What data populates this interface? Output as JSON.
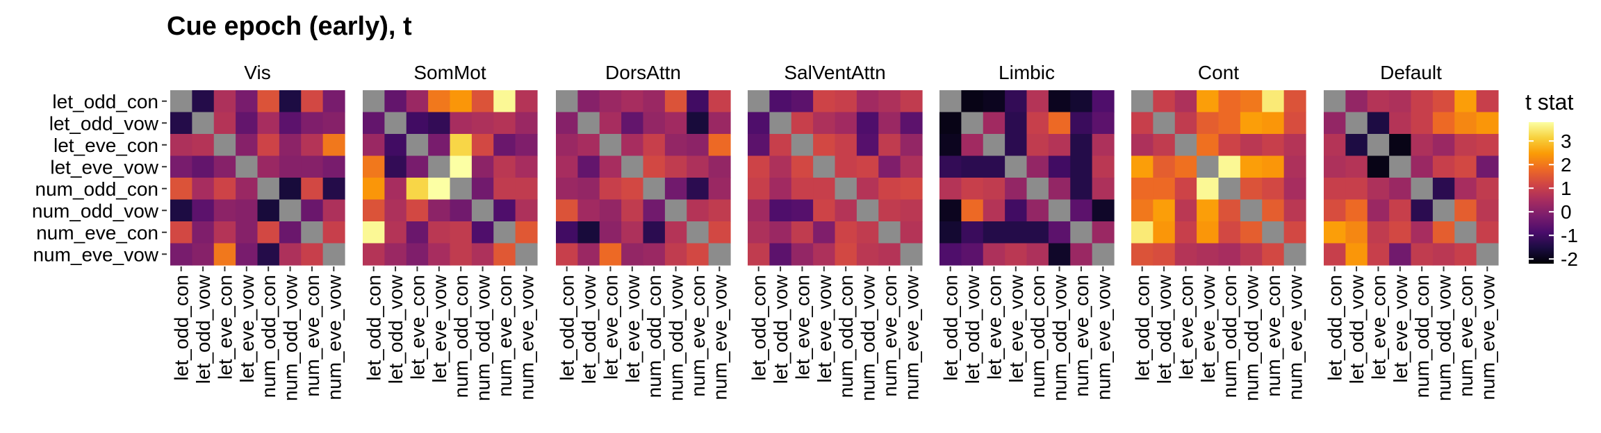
{
  "chart_data": {
    "type": "heatmap",
    "title": "Cue epoch (early), t",
    "xlabel": "",
    "ylabel": "",
    "row_labels": [
      "let_odd_con",
      "let_odd_vow",
      "let_eve_con",
      "let_eve_vow",
      "num_odd_con",
      "num_odd_vow",
      "num_eve_con",
      "num_eve_vow"
    ],
    "col_labels": [
      "let_odd_con",
      "let_odd_vow",
      "let_eve_con",
      "let_eve_vow",
      "num_odd_con",
      "num_odd_vow",
      "num_eve_con",
      "num_eve_vow"
    ],
    "diagonal": "NA",
    "na_color": "#8c8c8c",
    "color_scale": {
      "name": "inferno",
      "range": [
        -2.2,
        3.8
      ],
      "stops": [
        "#000004",
        "#1b0c41",
        "#4a0c6b",
        "#781c6d",
        "#a52c60",
        "#cf4446",
        "#ed6925",
        "#fb9b06",
        "#f7d13d",
        "#fcffa4"
      ]
    },
    "legend": {
      "title": "t stat",
      "ticks": [
        3,
        2,
        1,
        0,
        -1,
        -2
      ],
      "placement": "right"
    },
    "panels": [
      {
        "name": "Vis",
        "values": [
          [
            null,
            -1.4,
            0.6,
            -0.2,
            1.4,
            -1.5,
            1.2,
            -0.2
          ],
          [
            -1.4,
            null,
            0.7,
            -0.5,
            0.5,
            -0.6,
            -0.1,
            0.0
          ],
          [
            0.6,
            0.7,
            null,
            0.0,
            1.1,
            0.1,
            0.7,
            2.0
          ],
          [
            -0.2,
            -0.5,
            0.0,
            null,
            0.3,
            0.0,
            0.0,
            -0.2
          ],
          [
            1.4,
            0.5,
            1.1,
            0.3,
            null,
            -1.6,
            1.2,
            -1.4
          ],
          [
            -1.5,
            -0.6,
            0.1,
            0.0,
            -1.6,
            null,
            -0.4,
            0.6
          ],
          [
            1.2,
            -0.1,
            0.7,
            0.0,
            1.2,
            -0.4,
            null,
            1.0
          ],
          [
            -0.2,
            0.0,
            2.0,
            -0.2,
            -1.4,
            0.6,
            1.0,
            null
          ]
        ]
      },
      {
        "name": "SomMot",
        "values": [
          [
            null,
            -0.5,
            0.3,
            2.0,
            2.4,
            1.4,
            3.7,
            0.7
          ],
          [
            -0.5,
            null,
            -1.0,
            -1.2,
            0.5,
            0.6,
            0.7,
            0.3
          ],
          [
            0.3,
            -1.0,
            null,
            -0.2,
            3.2,
            1.2,
            -0.4,
            -0.1
          ],
          [
            2.0,
            -1.2,
            -0.2,
            null,
            3.8,
            0.1,
            0.8,
            0.5
          ],
          [
            2.4,
            0.5,
            3.2,
            3.8,
            null,
            -0.3,
            0.9,
            0.9
          ],
          [
            1.4,
            0.6,
            1.2,
            0.1,
            -0.3,
            null,
            -0.8,
            0.6
          ],
          [
            3.7,
            0.7,
            -0.4,
            0.8,
            0.9,
            -0.8,
            null,
            1.5
          ],
          [
            0.7,
            0.3,
            -0.1,
            0.5,
            0.9,
            0.6,
            1.5,
            null
          ]
        ]
      },
      {
        "name": "DorsAttn",
        "values": [
          [
            null,
            0.0,
            0.3,
            0.5,
            0.3,
            1.4,
            -1.0,
            1.0
          ],
          [
            0.0,
            null,
            0.5,
            -0.5,
            0.2,
            0.4,
            -1.6,
            0.3
          ],
          [
            0.3,
            0.5,
            null,
            0.5,
            1.0,
            0.2,
            0.1,
            1.8
          ],
          [
            0.5,
            -0.5,
            0.5,
            null,
            1.2,
            0.9,
            0.6,
            0.2
          ],
          [
            0.3,
            0.2,
            1.0,
            1.2,
            null,
            -0.3,
            -1.3,
            0.3
          ],
          [
            1.4,
            0.4,
            0.2,
            0.9,
            -0.3,
            null,
            0.7,
            0.9
          ],
          [
            -1.0,
            -1.6,
            0.1,
            0.6,
            -1.3,
            0.7,
            null,
            1.2
          ],
          [
            1.0,
            0.3,
            1.8,
            0.2,
            0.3,
            0.9,
            1.2,
            null
          ]
        ]
      },
      {
        "name": "SalVentAttn",
        "values": [
          [
            null,
            -0.8,
            -0.6,
            1.1,
            1.0,
            0.4,
            0.6,
            0.9
          ],
          [
            -0.8,
            null,
            1.0,
            0.6,
            0.4,
            -0.8,
            0.3,
            -0.6
          ],
          [
            -0.6,
            1.0,
            null,
            1.2,
            1.0,
            -0.7,
            0.9,
            0.2
          ],
          [
            1.1,
            0.6,
            1.2,
            null,
            1.0,
            1.1,
            -0.1,
            0.6
          ],
          [
            1.0,
            0.4,
            1.0,
            1.0,
            null,
            0.7,
            1.1,
            1.2
          ],
          [
            0.4,
            -0.8,
            -0.7,
            1.1,
            0.7,
            null,
            0.9,
            0.8
          ],
          [
            0.6,
            0.3,
            0.9,
            -0.1,
            1.1,
            0.9,
            null,
            0.7
          ],
          [
            0.9,
            -0.6,
            0.2,
            0.6,
            1.2,
            0.8,
            0.7,
            null
          ]
        ]
      },
      {
        "name": "Limbic",
        "values": [
          [
            null,
            -2.0,
            -1.9,
            -1.2,
            0.7,
            -1.9,
            -1.7,
            -0.8
          ],
          [
            -2.0,
            null,
            0.4,
            -1.3,
            1.0,
            1.8,
            -1.1,
            -0.6
          ],
          [
            -1.9,
            0.4,
            null,
            -1.3,
            0.9,
            0.7,
            -1.4,
            0.6
          ],
          [
            -1.2,
            -1.3,
            -1.3,
            null,
            0.2,
            -1.0,
            -1.4,
            0.8
          ],
          [
            0.7,
            1.0,
            0.9,
            0.2,
            null,
            0.2,
            -1.4,
            0.6
          ],
          [
            -1.9,
            1.8,
            0.7,
            -1.0,
            0.2,
            null,
            -0.6,
            -1.8
          ],
          [
            -1.7,
            -1.1,
            -1.4,
            -1.4,
            -1.4,
            -0.6,
            null,
            0.3
          ],
          [
            -0.8,
            -0.6,
            0.6,
            0.8,
            0.6,
            -1.8,
            0.3,
            null
          ]
        ]
      },
      {
        "name": "Cont",
        "values": [
          [
            null,
            1.0,
            0.6,
            2.5,
            1.8,
            2.0,
            3.5,
            1.4
          ],
          [
            1.0,
            null,
            0.9,
            1.6,
            1.8,
            2.5,
            2.4,
            1.3
          ],
          [
            0.6,
            0.9,
            null,
            1.9,
            1.1,
            0.8,
            1.0,
            0.7
          ],
          [
            2.5,
            1.6,
            1.9,
            null,
            3.7,
            2.5,
            2.4,
            0.6
          ],
          [
            1.8,
            1.8,
            1.1,
            3.7,
            null,
            1.4,
            1.2,
            0.5
          ],
          [
            2.0,
            2.5,
            0.8,
            2.5,
            1.4,
            null,
            1.6,
            0.8
          ],
          [
            3.5,
            2.4,
            1.0,
            2.4,
            1.2,
            1.6,
            null,
            1.2
          ],
          [
            1.4,
            1.3,
            0.7,
            0.6,
            0.5,
            0.8,
            1.2,
            null
          ]
        ]
      },
      {
        "name": "Default",
        "values": [
          [
            null,
            0.2,
            0.7,
            0.6,
            1.0,
            1.3,
            2.5,
            1.0
          ],
          [
            0.2,
            null,
            -1.5,
            0.7,
            1.0,
            1.8,
            2.2,
            2.4
          ],
          [
            0.7,
            -1.5,
            null,
            -2.0,
            0.6,
            0.3,
            0.9,
            1.0
          ],
          [
            0.6,
            0.7,
            -2.0,
            null,
            0.3,
            1.0,
            1.2,
            -0.3
          ],
          [
            1.0,
            1.0,
            0.6,
            0.3,
            null,
            -1.3,
            0.5,
            0.9
          ],
          [
            1.3,
            1.8,
            0.3,
            1.0,
            -1.3,
            null,
            1.6,
            0.8
          ],
          [
            2.5,
            2.2,
            0.9,
            1.2,
            0.5,
            1.6,
            null,
            1.0
          ],
          [
            1.0,
            2.4,
            1.0,
            -0.3,
            0.9,
            0.8,
            1.0,
            null
          ]
        ]
      }
    ]
  }
}
